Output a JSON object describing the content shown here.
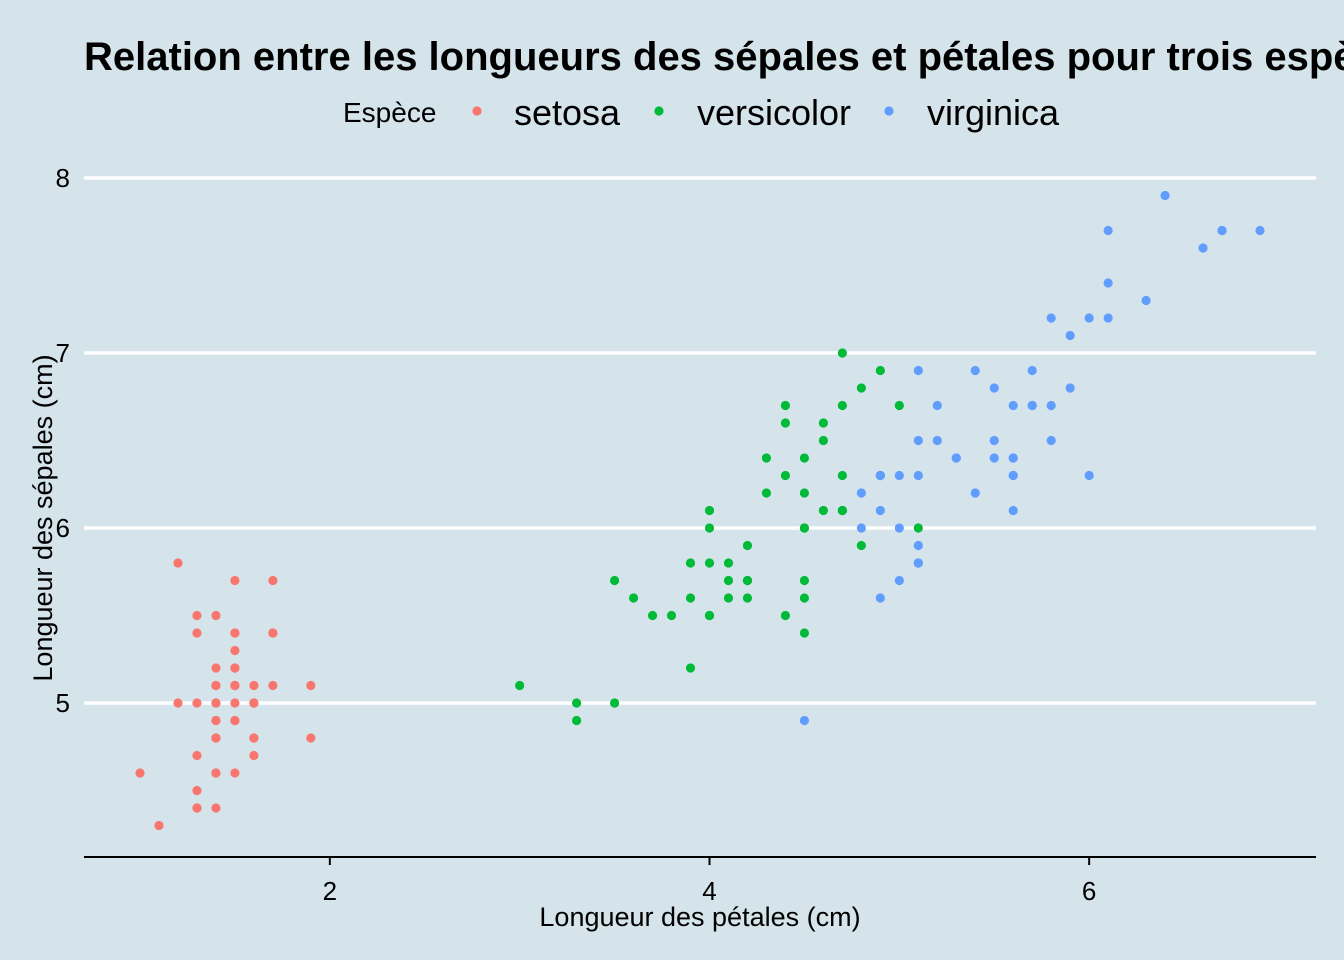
{
  "chart_data": {
    "type": "scatter",
    "title": "Relation entre les longueurs des sépales et pétales pour trois espèces d'iris",
    "xlabel": "Longueur des pétales (cm)",
    "ylabel": "Longueur des sépales (cm)",
    "legend_title": "Espèce",
    "legend_position": "top",
    "grid": "horizontal major lines",
    "xlim": [
      0.705,
      7.195
    ],
    "ylim": [
      4.12,
      8.08
    ],
    "x_ticks": [
      2,
      4,
      6
    ],
    "y_ticks": [
      5,
      6,
      7,
      8
    ],
    "series": [
      {
        "name": "setosa",
        "color": "#f8766d",
        "points": [
          [
            1.4,
            5.1
          ],
          [
            1.4,
            4.9
          ],
          [
            1.3,
            4.7
          ],
          [
            1.5,
            4.6
          ],
          [
            1.4,
            5.0
          ],
          [
            1.7,
            5.4
          ],
          [
            1.4,
            4.6
          ],
          [
            1.5,
            5.0
          ],
          [
            1.4,
            4.4
          ],
          [
            1.5,
            4.9
          ],
          [
            1.5,
            5.4
          ],
          [
            1.6,
            4.8
          ],
          [
            1.4,
            4.8
          ],
          [
            1.1,
            4.3
          ],
          [
            1.2,
            5.8
          ],
          [
            1.5,
            5.7
          ],
          [
            1.3,
            5.4
          ],
          [
            1.4,
            5.1
          ],
          [
            1.7,
            5.7
          ],
          [
            1.5,
            5.1
          ],
          [
            1.7,
            5.4
          ],
          [
            1.5,
            5.1
          ],
          [
            1.0,
            4.6
          ],
          [
            1.7,
            5.1
          ],
          [
            1.9,
            4.8
          ],
          [
            1.6,
            5.0
          ],
          [
            1.6,
            5.0
          ],
          [
            1.5,
            5.2
          ],
          [
            1.4,
            5.2
          ],
          [
            1.6,
            4.7
          ],
          [
            1.6,
            4.8
          ],
          [
            1.5,
            5.4
          ],
          [
            1.5,
            5.2
          ],
          [
            1.4,
            5.5
          ],
          [
            1.5,
            4.9
          ],
          [
            1.2,
            5.0
          ],
          [
            1.3,
            5.5
          ],
          [
            1.4,
            4.9
          ],
          [
            1.3,
            4.4
          ],
          [
            1.5,
            5.1
          ],
          [
            1.3,
            5.0
          ],
          [
            1.3,
            4.5
          ],
          [
            1.3,
            4.4
          ],
          [
            1.6,
            5.0
          ],
          [
            1.9,
            5.1
          ],
          [
            1.4,
            4.8
          ],
          [
            1.6,
            5.1
          ],
          [
            1.4,
            4.6
          ],
          [
            1.5,
            5.3
          ],
          [
            1.4,
            5.0
          ]
        ]
      },
      {
        "name": "versicolor",
        "color": "#00ba38",
        "points": [
          [
            4.7,
            7.0
          ],
          [
            4.5,
            6.4
          ],
          [
            4.9,
            6.9
          ],
          [
            4.0,
            5.5
          ],
          [
            4.6,
            6.5
          ],
          [
            4.5,
            5.7
          ],
          [
            4.7,
            6.3
          ],
          [
            3.3,
            4.9
          ],
          [
            4.6,
            6.6
          ],
          [
            3.9,
            5.2
          ],
          [
            3.5,
            5.0
          ],
          [
            4.2,
            5.9
          ],
          [
            4.0,
            6.0
          ],
          [
            4.7,
            6.1
          ],
          [
            3.6,
            5.6
          ],
          [
            4.4,
            6.7
          ],
          [
            4.5,
            5.6
          ],
          [
            4.1,
            5.8
          ],
          [
            4.5,
            6.2
          ],
          [
            3.9,
            5.6
          ],
          [
            4.8,
            5.9
          ],
          [
            4.0,
            6.1
          ],
          [
            4.9,
            6.3
          ],
          [
            4.7,
            6.1
          ],
          [
            4.3,
            6.4
          ],
          [
            4.4,
            6.6
          ],
          [
            4.8,
            6.8
          ],
          [
            5.0,
            6.7
          ],
          [
            4.5,
            6.0
          ],
          [
            3.5,
            5.7
          ],
          [
            3.8,
            5.5
          ],
          [
            3.7,
            5.5
          ],
          [
            3.9,
            5.8
          ],
          [
            5.1,
            6.0
          ],
          [
            4.5,
            5.4
          ],
          [
            4.5,
            6.0
          ],
          [
            4.7,
            6.7
          ],
          [
            4.4,
            6.3
          ],
          [
            4.1,
            5.6
          ],
          [
            4.0,
            5.5
          ],
          [
            4.4,
            5.5
          ],
          [
            4.6,
            6.1
          ],
          [
            4.0,
            5.8
          ],
          [
            3.3,
            5.0
          ],
          [
            4.2,
            5.6
          ],
          [
            4.2,
            5.7
          ],
          [
            4.2,
            5.7
          ],
          [
            4.3,
            6.2
          ],
          [
            3.0,
            5.1
          ],
          [
            4.1,
            5.7
          ]
        ]
      },
      {
        "name": "virginica",
        "color": "#619cff",
        "points": [
          [
            6.0,
            6.3
          ],
          [
            5.1,
            5.8
          ],
          [
            5.9,
            7.1
          ],
          [
            5.6,
            6.3
          ],
          [
            5.8,
            6.5
          ],
          [
            6.6,
            7.6
          ],
          [
            4.5,
            4.9
          ],
          [
            6.3,
            7.3
          ],
          [
            5.8,
            6.7
          ],
          [
            6.1,
            7.2
          ],
          [
            5.1,
            6.5
          ],
          [
            5.3,
            6.4
          ],
          [
            5.5,
            6.8
          ],
          [
            5.0,
            5.7
          ],
          [
            5.1,
            5.8
          ],
          [
            5.3,
            6.4
          ],
          [
            5.5,
            6.5
          ],
          [
            6.7,
            7.7
          ],
          [
            6.9,
            7.7
          ],
          [
            5.0,
            6.0
          ],
          [
            5.7,
            6.9
          ],
          [
            4.9,
            5.6
          ],
          [
            6.7,
            7.7
          ],
          [
            4.9,
            6.3
          ],
          [
            5.7,
            6.7
          ],
          [
            6.0,
            7.2
          ],
          [
            4.8,
            6.2
          ],
          [
            4.9,
            6.1
          ],
          [
            5.6,
            6.4
          ],
          [
            5.8,
            7.2
          ],
          [
            6.1,
            7.4
          ],
          [
            6.4,
            7.9
          ],
          [
            5.6,
            6.4
          ],
          [
            5.1,
            6.3
          ],
          [
            5.6,
            6.1
          ],
          [
            6.1,
            7.7
          ],
          [
            5.6,
            6.3
          ],
          [
            5.5,
            6.4
          ],
          [
            4.8,
            6.0
          ],
          [
            5.4,
            6.9
          ],
          [
            5.6,
            6.7
          ],
          [
            5.1,
            6.9
          ],
          [
            5.1,
            5.8
          ],
          [
            5.9,
            6.8
          ],
          [
            5.7,
            6.7
          ],
          [
            5.2,
            6.7
          ],
          [
            5.0,
            6.3
          ],
          [
            5.2,
            6.5
          ],
          [
            5.4,
            6.2
          ],
          [
            5.1,
            5.9
          ]
        ]
      }
    ]
  }
}
